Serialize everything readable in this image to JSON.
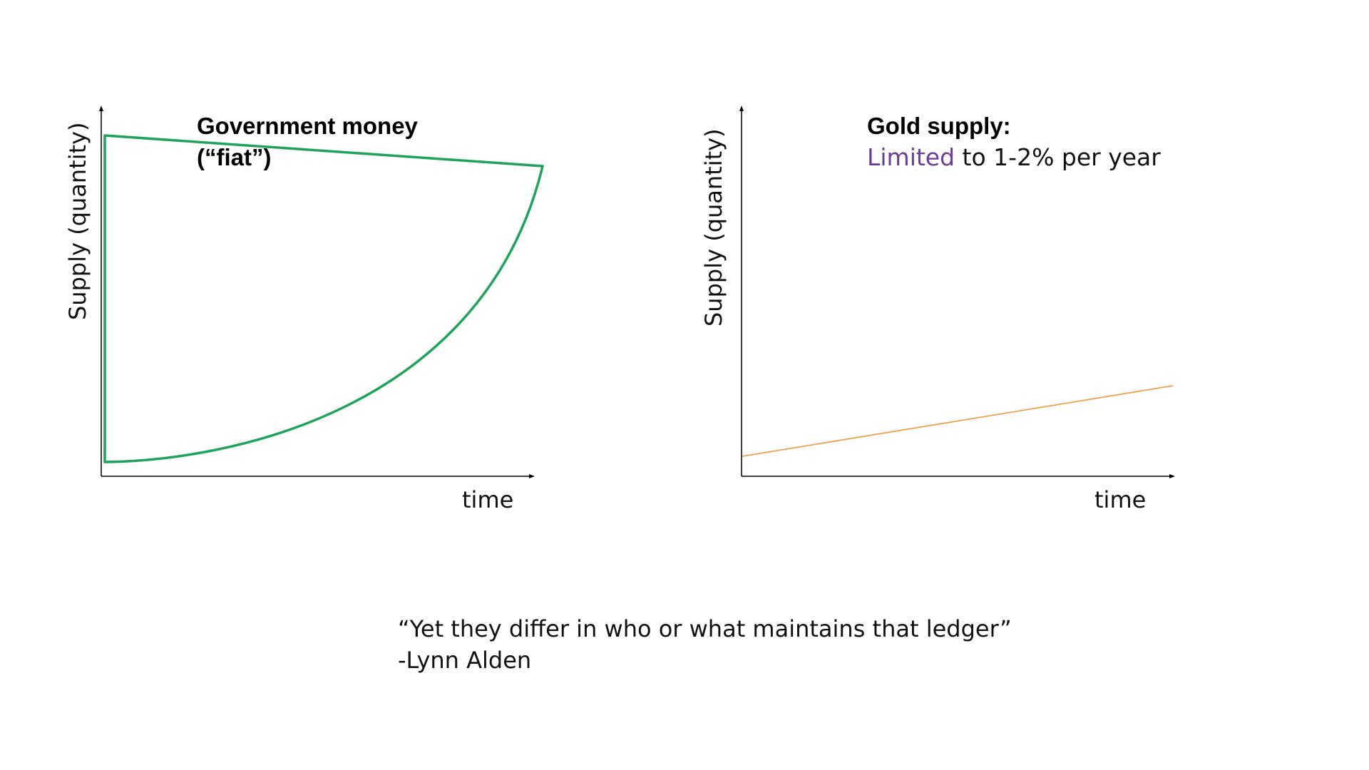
{
  "chart_data": [
    {
      "type": "line",
      "title_lines": [
        "Government money",
        "(“fiat”)"
      ],
      "xlabel": "time",
      "ylabel": "Supply (quantity)",
      "grid": false,
      "colors": {
        "series": "#1ea35a",
        "axis": "#000000"
      }
    },
    {
      "type": "line",
      "title": "Gold supply:",
      "subtitle_highlight": "Limited",
      "subtitle_rest": " to 1-2% per year",
      "xlabel": "time",
      "ylabel": "Supply (quantity)",
      "grid": false,
      "colors": {
        "series": "#eaa34e",
        "highlight": "#6a3d9a",
        "axis": "#000000"
      }
    }
  ],
  "quote": {
    "text": "“Yet they differ in who or what maintains that ledger”",
    "author": "-Lynn Alden"
  }
}
